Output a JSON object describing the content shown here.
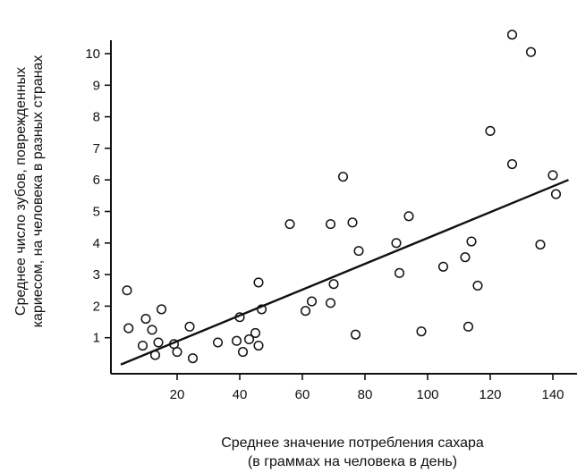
{
  "chart_data": {
    "type": "scatter",
    "title": "",
    "xlabel": [
      "Среднее значение потребления сахара",
      "(в граммах на человека в день)"
    ],
    "ylabel": [
      "Среднее число зубов, поврежденных",
      "кариесом, на человека в разных странах"
    ],
    "xlim": [
      0,
      145
    ],
    "ylim": [
      0,
      11
    ],
    "x_ticks": [
      20,
      40,
      60,
      80,
      100,
      120,
      140
    ],
    "y_ticks": [
      1,
      2,
      3,
      4,
      5,
      6,
      7,
      8,
      9,
      10
    ],
    "grid": false,
    "marker": "hollow-circle",
    "points": [
      {
        "x": 4,
        "y": 2.5
      },
      {
        "x": 4.5,
        "y": 1.3
      },
      {
        "x": 9,
        "y": 0.75
      },
      {
        "x": 10,
        "y": 1.6
      },
      {
        "x": 12,
        "y": 1.25
      },
      {
        "x": 13,
        "y": 0.45
      },
      {
        "x": 14,
        "y": 0.85
      },
      {
        "x": 15,
        "y": 1.9
      },
      {
        "x": 19,
        "y": 0.8
      },
      {
        "x": 20,
        "y": 0.55
      },
      {
        "x": 24,
        "y": 1.35
      },
      {
        "x": 25,
        "y": 0.35
      },
      {
        "x": 33,
        "y": 0.85
      },
      {
        "x": 39,
        "y": 0.9
      },
      {
        "x": 40,
        "y": 1.65
      },
      {
        "x": 41,
        "y": 0.55
      },
      {
        "x": 43,
        "y": 0.95
      },
      {
        "x": 45,
        "y": 1.15
      },
      {
        "x": 46,
        "y": 0.75
      },
      {
        "x": 46,
        "y": 2.75
      },
      {
        "x": 47,
        "y": 1.9
      },
      {
        "x": 56,
        "y": 4.6
      },
      {
        "x": 61,
        "y": 1.85
      },
      {
        "x": 63,
        "y": 2.15
      },
      {
        "x": 69,
        "y": 2.1
      },
      {
        "x": 69,
        "y": 4.6
      },
      {
        "x": 70,
        "y": 2.7
      },
      {
        "x": 73,
        "y": 6.1
      },
      {
        "x": 76,
        "y": 4.65
      },
      {
        "x": 77,
        "y": 1.1
      },
      {
        "x": 78,
        "y": 3.75
      },
      {
        "x": 90,
        "y": 4.0
      },
      {
        "x": 91,
        "y": 3.05
      },
      {
        "x": 94,
        "y": 4.85
      },
      {
        "x": 98,
        "y": 1.2
      },
      {
        "x": 105,
        "y": 3.25
      },
      {
        "x": 112,
        "y": 3.55
      },
      {
        "x": 113,
        "y": 1.35
      },
      {
        "x": 114,
        "y": 4.05
      },
      {
        "x": 116,
        "y": 2.65
      },
      {
        "x": 120,
        "y": 7.55
      },
      {
        "x": 127,
        "y": 10.6
      },
      {
        "x": 127,
        "y": 6.5
      },
      {
        "x": 133,
        "y": 10.05
      },
      {
        "x": 136,
        "y": 3.95
      },
      {
        "x": 140,
        "y": 6.15
      },
      {
        "x": 141,
        "y": 5.55
      }
    ],
    "trendline": {
      "x": [
        2,
        145
      ],
      "y": [
        0.15,
        6.0
      ]
    }
  }
}
